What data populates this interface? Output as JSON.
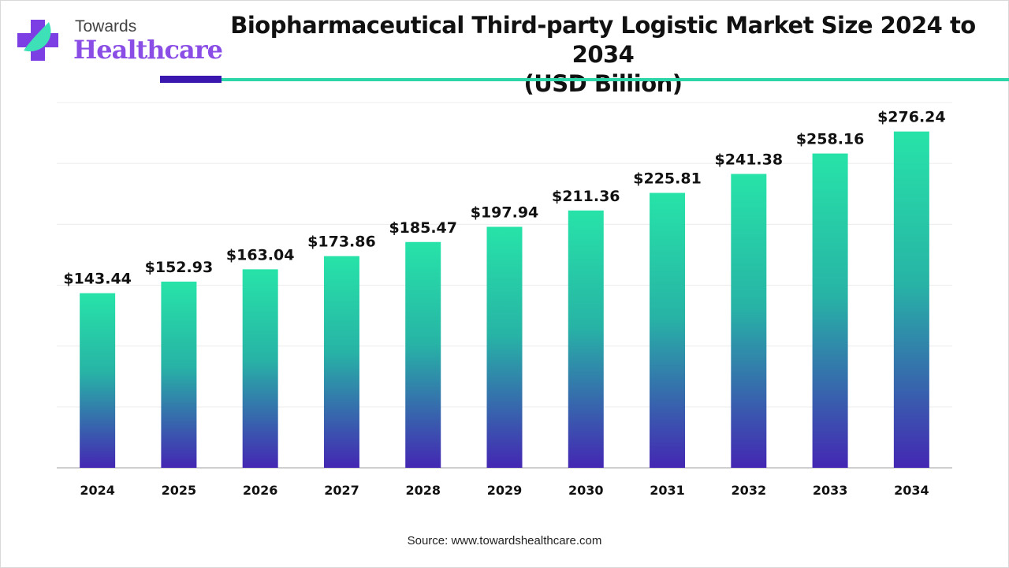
{
  "logo": {
    "line1": "Towards",
    "line2": "Healthcare"
  },
  "title_line1": "Biopharmaceutical Third-party Logistic Market Size 2024 to 2034",
  "title_line2": "(USD Billion)",
  "source": "Source: www.towardshealthcare.com",
  "chart_data": {
    "type": "bar",
    "title": "Biopharmaceutical Third-party Logistic Market Size 2024 to 2034 (USD Billion)",
    "categories": [
      "2024",
      "2025",
      "2026",
      "2027",
      "2028",
      "2029",
      "2030",
      "2031",
      "2032",
      "2033",
      "2034"
    ],
    "values": [
      143.44,
      152.93,
      163.04,
      173.86,
      185.47,
      197.94,
      211.36,
      225.81,
      241.38,
      258.16,
      276.24
    ],
    "labels": [
      "$143.44",
      "$152.93",
      "$163.04",
      "$173.86",
      "$185.47",
      "$197.94",
      "$211.36",
      "$225.81",
      "$241.38",
      "$258.16",
      "$276.24"
    ],
    "xlabel": "",
    "ylabel": "",
    "ylim": [
      0,
      300
    ],
    "grid": true,
    "colors": {
      "top": "#27e3a8",
      "bottom": "#4427b3"
    }
  }
}
